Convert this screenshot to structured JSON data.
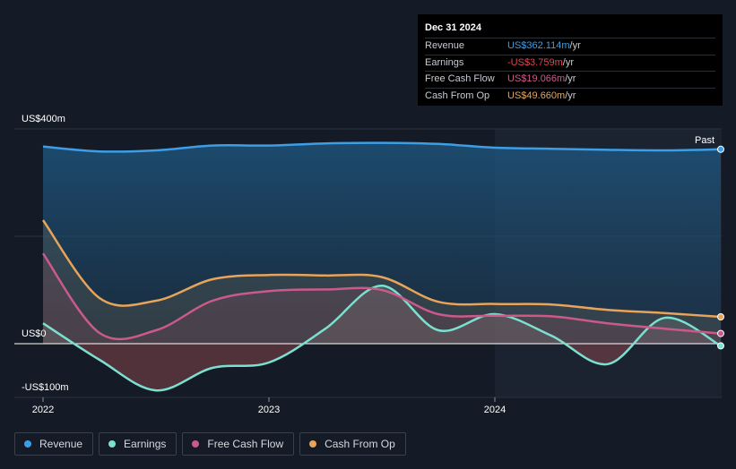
{
  "tooltip": {
    "date": "Dec 31 2024",
    "rows": [
      {
        "label": "Revenue",
        "value": "US$362.114m",
        "unit": "/yr",
        "color": "#3d9ee5"
      },
      {
        "label": "Earnings",
        "value": "-US$3.759m",
        "unit": "/yr",
        "color": "#e0474c"
      },
      {
        "label": "Free Cash Flow",
        "value": "US$19.066m",
        "unit": "/yr",
        "color": "#cb5a8a"
      },
      {
        "label": "Cash From Op",
        "value": "US$49.660m",
        "unit": "/yr",
        "color": "#e7a45a"
      }
    ]
  },
  "legend": [
    {
      "label": "Revenue",
      "color": "#3d9ee5"
    },
    {
      "label": "Earnings",
      "color": "#7be0cf"
    },
    {
      "label": "Free Cash Flow",
      "color": "#cb5a8a"
    },
    {
      "label": "Cash From Op",
      "color": "#e7a45a"
    }
  ],
  "chart_data": {
    "type": "line",
    "y_labels": [
      "US$400m",
      "US$0",
      "-US$100m"
    ],
    "past_label": "Past",
    "x_ticks": [
      {
        "label": "2022",
        "x": 2022.0
      },
      {
        "label": "2023",
        "x": 2023.0
      },
      {
        "label": "2024",
        "x": 2024.0
      }
    ],
    "ylim": [
      -100,
      400
    ],
    "xlim": [
      2022.0,
      2025.0
    ],
    "series": [
      {
        "name": "Revenue",
        "color": "#3d9ee5",
        "points": [
          [
            2022.0,
            367
          ],
          [
            2022.25,
            358
          ],
          [
            2022.5,
            360
          ],
          [
            2022.75,
            369
          ],
          [
            2023.0,
            369
          ],
          [
            2023.25,
            373
          ],
          [
            2023.5,
            374
          ],
          [
            2023.75,
            372
          ],
          [
            2024.0,
            365
          ],
          [
            2024.25,
            363
          ],
          [
            2024.5,
            361
          ],
          [
            2024.75,
            360
          ],
          [
            2025.0,
            362
          ]
        ]
      },
      {
        "name": "Earnings",
        "color": "#7be0cf",
        "points": [
          [
            2022.0,
            38
          ],
          [
            2022.25,
            -30
          ],
          [
            2022.5,
            -87
          ],
          [
            2022.75,
            -45
          ],
          [
            2023.0,
            -35
          ],
          [
            2023.25,
            28
          ],
          [
            2023.5,
            108
          ],
          [
            2023.75,
            25
          ],
          [
            2024.0,
            55
          ],
          [
            2024.25,
            15
          ],
          [
            2024.5,
            -38
          ],
          [
            2024.75,
            48
          ],
          [
            2025.0,
            -4
          ]
        ]
      },
      {
        "name": "Free Cash Flow",
        "color": "#cb5a8a",
        "points": [
          [
            2022.0,
            168
          ],
          [
            2022.25,
            20
          ],
          [
            2022.5,
            25
          ],
          [
            2022.75,
            80
          ],
          [
            2023.0,
            98
          ],
          [
            2023.25,
            101
          ],
          [
            2023.5,
            100
          ],
          [
            2023.75,
            55
          ],
          [
            2024.0,
            52
          ],
          [
            2024.25,
            51
          ],
          [
            2024.5,
            38
          ],
          [
            2024.75,
            28
          ],
          [
            2025.0,
            19
          ]
        ]
      },
      {
        "name": "Cash From Op",
        "color": "#e7a45a",
        "points": [
          [
            2022.0,
            230
          ],
          [
            2022.25,
            85
          ],
          [
            2022.5,
            80
          ],
          [
            2022.75,
            120
          ],
          [
            2023.0,
            128
          ],
          [
            2023.25,
            127
          ],
          [
            2023.5,
            124
          ],
          [
            2023.75,
            78
          ],
          [
            2024.0,
            74
          ],
          [
            2024.25,
            73
          ],
          [
            2024.5,
            63
          ],
          [
            2024.75,
            57
          ],
          [
            2025.0,
            50
          ]
        ]
      }
    ]
  }
}
